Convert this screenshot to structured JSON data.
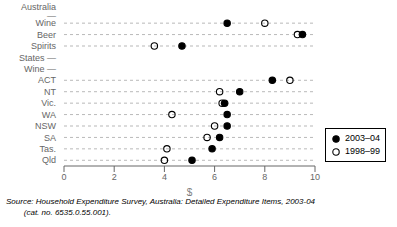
{
  "chart_data": {
    "type": "dot",
    "categories": [
      "Australia —",
      "Wine",
      "Beer",
      "Spirits",
      "States —",
      "Wine —",
      "ACT",
      "NT",
      "Vic.",
      "WA",
      "NSW",
      "SA",
      "Tas.",
      "Qld"
    ],
    "series": [
      {
        "name": "2003–04",
        "color": "#000000",
        "marker": "filled_circle",
        "values": [
          null,
          6.5,
          9.5,
          4.7,
          null,
          null,
          8.3,
          7.0,
          6.4,
          6.5,
          6.5,
          6.2,
          5.9,
          5.1
        ]
      },
      {
        "name": "1998–99",
        "color": "#000000",
        "marker": "open_circle",
        "values": [
          null,
          8.0,
          9.3,
          3.6,
          null,
          null,
          9.0,
          6.2,
          6.3,
          4.3,
          6.0,
          5.7,
          4.1,
          4.0
        ]
      }
    ],
    "xlabel": "$",
    "xlim": [
      0,
      10
    ],
    "xticks": [
      0,
      2,
      4,
      6,
      8,
      10
    ],
    "grid": true,
    "legend": "lower right",
    "annotations": [
      "Source: Household Expenditure Survey, Australia: Detailed Expenditure Items, 2003-04",
      "        (cat. no. 6535.0.55.001)."
    ]
  }
}
